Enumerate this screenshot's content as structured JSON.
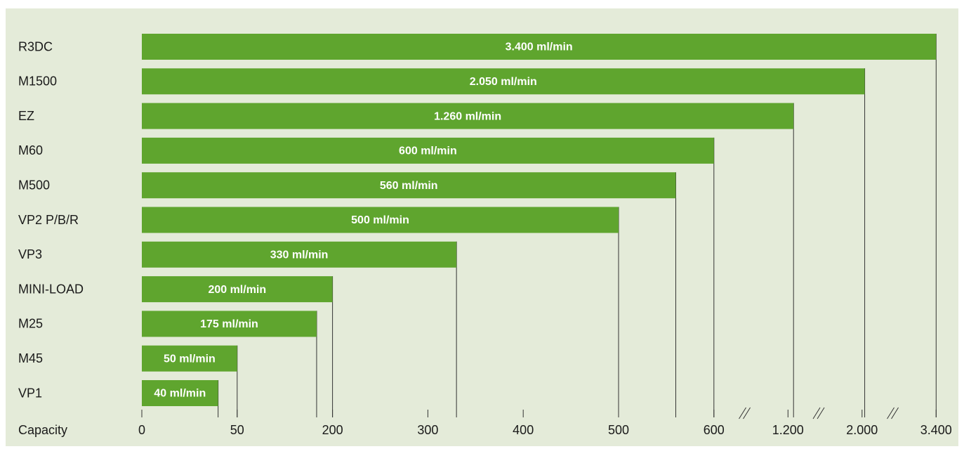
{
  "chart_data": {
    "type": "bar",
    "orientation": "horizontal",
    "color": "#5fa52e",
    "x_label": "Capacity",
    "categories": [
      "R3DC",
      "M1500",
      "EZ",
      "M60",
      "M500",
      "VP2 P/B/R",
      "VP3",
      "MINI-LOAD",
      "M25",
      "M45",
      "VP1"
    ],
    "values": [
      3400,
      2050,
      1260,
      600,
      560,
      500,
      330,
      200,
      175,
      50,
      40
    ],
    "value_labels": [
      "3.400 ml/min",
      "2.050 ml/min",
      "1.260 ml/min",
      "600 ml/min",
      "560 ml/min",
      "500 ml/min",
      "330 ml/min",
      "200 ml/min",
      "175 ml/min",
      "50 ml/min",
      "40 ml/min"
    ],
    "xlim": [
      0,
      3400
    ],
    "xticks": [
      0,
      50,
      200,
      300,
      400,
      500,
      600,
      {
        "value": 1200,
        "label": "1.200"
      },
      {
        "value": 2000,
        "label": "2.000"
      },
      {
        "value": 3400,
        "label": "3.400"
      }
    ]
  }
}
